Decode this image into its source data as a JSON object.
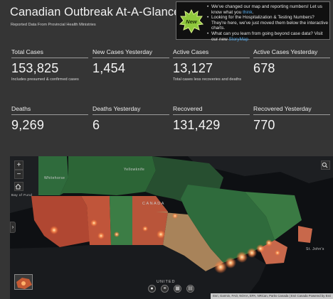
{
  "header": {
    "title": "Canadian Outbreak At-A-Glance",
    "subtitle": "Reported Data From Provincial Health Ministries"
  },
  "notice": {
    "badge": "New",
    "items": [
      {
        "text": "We've changed our map and reporting numbers! Let us know what you",
        "link": "think",
        "after": "."
      },
      {
        "text": "Looking for the Hospitalization & Testing Numbers? They're here, we've just moved them below the interactive charts.",
        "link": "",
        "after": ""
      },
      {
        "text": "What can you learn from going beyond case data? Visit our new",
        "link": "StoryMap",
        "after": ""
      }
    ]
  },
  "stats": {
    "total_cases": {
      "label": "Total Cases",
      "value": "153,825",
      "note": "Includes presumed & confirmed cases"
    },
    "new_cases_yesterday": {
      "label": "New Cases Yesterday",
      "value": "1,454"
    },
    "active_cases": {
      "label": "Active Cases",
      "value": "13,127",
      "note": "Total cases less recoveries and deaths"
    },
    "active_cases_yesterday": {
      "label": "Active Cases Yesterday",
      "value": "678"
    },
    "deaths": {
      "label": "Deaths",
      "value": "9,269"
    },
    "deaths_yesterday": {
      "label": "Deaths Yesterday",
      "value": "6"
    },
    "recovered": {
      "label": "Recovered",
      "value": "131,429"
    },
    "recovered_yesterday": {
      "label": "Recovered Yesterday",
      "value": "770"
    }
  },
  "map": {
    "labels": {
      "yellowknife": "Yellowknife",
      "whitehorse": "Whitehorse",
      "canada": "CANADA",
      "st_johns": "St. John's",
      "united": "UNITED",
      "left_edge": "Bay of Fund"
    },
    "zoom_in": "+",
    "zoom_out": "−",
    "attribution": "Esri, Garmin, FAO, NOAA, EPA, NRCan, Parks Canada | Esri Canada   Powered by Esri",
    "icons": [
      "home-icon",
      "search-icon",
      "collapse-panel-icon",
      "basemap-thumbnail-icon",
      "pin-icon",
      "list-icon",
      "grid-icon",
      "layers-icon"
    ],
    "colors": {
      "ocean": "#0e1013",
      "land_dark": "#1d1f22",
      "territory_green": "#2f6b3c",
      "province_green": "#3c7d45",
      "province_red": "#b04732",
      "province_salmon": "#c8684b",
      "province_tan": "#a8835a",
      "hotspot": "#ff9a5a"
    }
  }
}
